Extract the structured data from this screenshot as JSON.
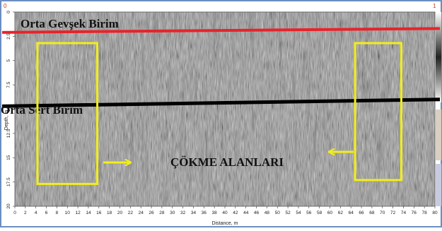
{
  "figure": {
    "corner_left": "0",
    "corner_right": "1",
    "y_axis_label": "Depth, m",
    "x_axis_label": "Distance, m",
    "y_ticks": [
      "0",
      "2.5",
      "5",
      "7.5",
      "10",
      "12.5",
      "15",
      "17.5",
      "20"
    ],
    "x_ticks": [
      "0",
      "2",
      "4",
      "6",
      "8",
      "10",
      "12",
      "14",
      "16",
      "18",
      "20",
      "22",
      "24",
      "26",
      "28",
      "30",
      "32",
      "34",
      "36",
      "38",
      "40",
      "42",
      "44",
      "46",
      "48",
      "50",
      "52",
      "54",
      "56",
      "58",
      "60",
      "62",
      "64",
      "66",
      "68",
      "70",
      "72",
      "74",
      "76",
      "78",
      "80"
    ],
    "x_range": [
      0,
      80
    ],
    "y_range": [
      0,
      20
    ],
    "layers": [
      {
        "label": "Orta Gevşek Birim",
        "line_color": "#e8232a",
        "depth_start_m": 2.1,
        "depth_end_m": 1.7
      },
      {
        "label": "Orta Sert Birim",
        "line_color": "#000000",
        "depth_start_m": 9.7,
        "depth_end_m": 9.0
      }
    ],
    "collapse_zones": {
      "label": "ÇÖKME ALANLARI",
      "box_color": "#f2ee19",
      "arrow_color": "#f2ee19",
      "zones": [
        {
          "x_start_m": 4.3,
          "x_end_m": 15.7,
          "depth_top_m": 3.2,
          "depth_bottom_m": 17.7
        },
        {
          "x_start_m": 64.8,
          "x_end_m": 73.6,
          "depth_top_m": 3.2,
          "depth_bottom_m": 17.3
        }
      ]
    },
    "colors": {
      "background": "#8a8a8a",
      "frame": "#6c8ec0"
    }
  }
}
